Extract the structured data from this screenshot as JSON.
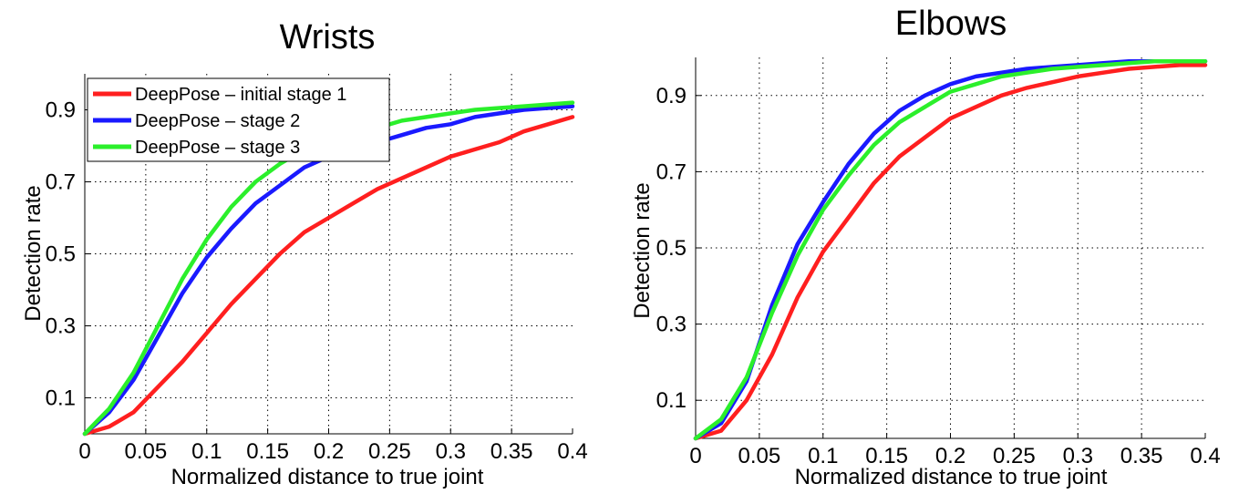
{
  "chart_data": [
    {
      "type": "line",
      "title": "Wrists",
      "xlabel": "Normalized distance to true joint",
      "ylabel": "Detection rate",
      "xlim": [
        0,
        0.4
      ],
      "ylim": [
        0,
        1
      ],
      "xticks": [
        "0",
        "0.05",
        "0.1",
        "0.15",
        "0.2",
        "0.25",
        "0.3",
        "0.35",
        "0.4"
      ],
      "yticks": [
        "0.1",
        "0.3",
        "0.5",
        "0.7",
        "0.9"
      ],
      "grid": true,
      "legend_position": "top-left",
      "x": [
        0,
        0.02,
        0.04,
        0.06,
        0.08,
        0.1,
        0.12,
        0.14,
        0.16,
        0.18,
        0.2,
        0.22,
        0.24,
        0.26,
        0.28,
        0.3,
        0.32,
        0.34,
        0.36,
        0.38,
        0.4
      ],
      "series": [
        {
          "name": "DeepPose – initial stage 1",
          "color": "#ff1f1f",
          "values": [
            0.0,
            0.02,
            0.06,
            0.13,
            0.2,
            0.28,
            0.36,
            0.43,
            0.5,
            0.56,
            0.6,
            0.64,
            0.68,
            0.71,
            0.74,
            0.77,
            0.79,
            0.81,
            0.84,
            0.86,
            0.88
          ]
        },
        {
          "name": "DeepPose – stage 2",
          "color": "#1a1aff",
          "values": [
            0.0,
            0.06,
            0.15,
            0.27,
            0.39,
            0.49,
            0.57,
            0.64,
            0.69,
            0.74,
            0.77,
            0.79,
            0.81,
            0.83,
            0.85,
            0.86,
            0.88,
            0.89,
            0.9,
            0.905,
            0.91
          ]
        },
        {
          "name": "DeepPose – stage 3",
          "color": "#2bef2b",
          "values": [
            0.0,
            0.07,
            0.17,
            0.3,
            0.43,
            0.54,
            0.63,
            0.7,
            0.75,
            0.79,
            0.81,
            0.83,
            0.85,
            0.87,
            0.88,
            0.89,
            0.9,
            0.905,
            0.91,
            0.915,
            0.92
          ]
        }
      ]
    },
    {
      "type": "line",
      "title": "Elbows",
      "xlabel": "Normalized distance to true joint",
      "ylabel": "Detection rate",
      "xlim": [
        0,
        0.4
      ],
      "ylim": [
        0,
        1
      ],
      "xticks": [
        "0",
        "0.05",
        "0.1",
        "0.15",
        "0.2",
        "0.25",
        "0.3",
        "0.35",
        "0.4"
      ],
      "yticks": [
        "0.1",
        "0.3",
        "0.5",
        "0.7",
        "0.9"
      ],
      "grid": true,
      "x": [
        0,
        0.02,
        0.04,
        0.06,
        0.08,
        0.1,
        0.12,
        0.14,
        0.16,
        0.18,
        0.2,
        0.22,
        0.24,
        0.26,
        0.28,
        0.3,
        0.32,
        0.34,
        0.36,
        0.38,
        0.4
      ],
      "series": [
        {
          "color": "#ff1f1f",
          "values": [
            0.0,
            0.02,
            0.1,
            0.22,
            0.37,
            0.49,
            0.58,
            0.67,
            0.74,
            0.79,
            0.84,
            0.87,
            0.9,
            0.92,
            0.935,
            0.95,
            0.96,
            0.97,
            0.975,
            0.98,
            0.98
          ]
        },
        {
          "color": "#1a1aff",
          "values": [
            0.0,
            0.04,
            0.15,
            0.35,
            0.51,
            0.62,
            0.72,
            0.8,
            0.86,
            0.9,
            0.93,
            0.95,
            0.96,
            0.97,
            0.975,
            0.98,
            0.985,
            0.99,
            0.99,
            0.99,
            0.99
          ]
        },
        {
          "color": "#2bef2b",
          "values": [
            0.0,
            0.05,
            0.16,
            0.33,
            0.48,
            0.6,
            0.69,
            0.77,
            0.83,
            0.87,
            0.91,
            0.93,
            0.95,
            0.96,
            0.97,
            0.975,
            0.98,
            0.985,
            0.99,
            0.99,
            0.99
          ]
        }
      ]
    }
  ]
}
